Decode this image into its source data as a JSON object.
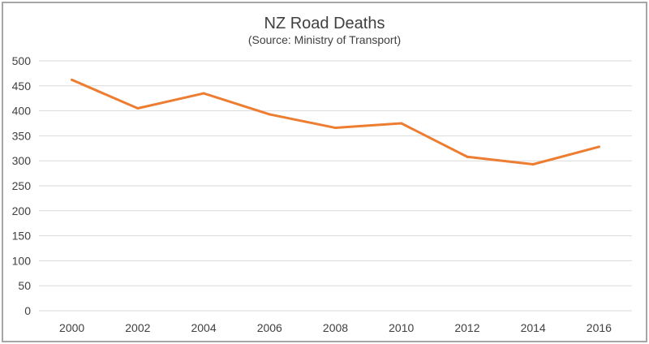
{
  "chart_data": {
    "type": "line",
    "title": "NZ Road Deaths",
    "subtitle": "(Source: Ministry of Transport)",
    "xlabel": "",
    "ylabel": "",
    "categories": [
      "2000",
      "2002",
      "2004",
      "2006",
      "2008",
      "2010",
      "2012",
      "2014",
      "2016"
    ],
    "series": [
      {
        "values": [
          462,
          405,
          435,
          393,
          366,
          375,
          308,
          293,
          328
        ],
        "color": "#ed7d31"
      }
    ],
    "ylim": [
      0,
      500
    ],
    "yticks": [
      0,
      50,
      100,
      150,
      200,
      250,
      300,
      350,
      400,
      450,
      500
    ],
    "grid": true,
    "legend": "none"
  }
}
